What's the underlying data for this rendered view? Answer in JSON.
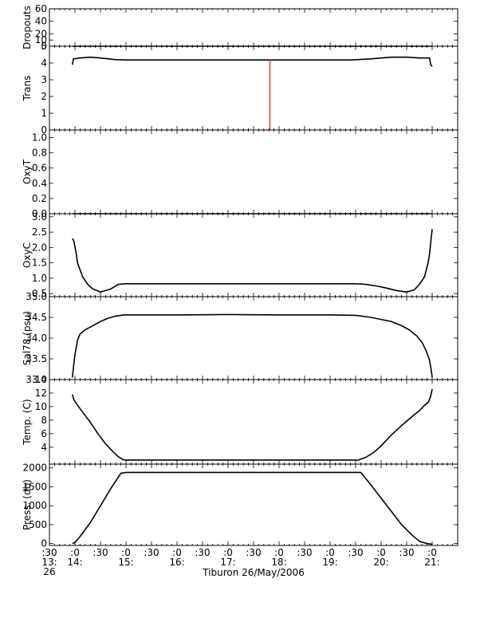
{
  "chart_data": {
    "type": "line",
    "title": "",
    "xlabel": "Tiburon 26/May/2006",
    "x_ticks": [
      {
        "t": 13.5,
        "line1": ":30",
        "line2": "13:",
        "line3": "26"
      },
      {
        "t": 14.0,
        "line1": ":0",
        "line2": "14:",
        "line3": ""
      },
      {
        "t": 14.5,
        "line1": ":30",
        "line2": "",
        "line3": ""
      },
      {
        "t": 15.0,
        "line1": ":0",
        "line2": "15:",
        "line3": ""
      },
      {
        "t": 15.5,
        "line1": ":30",
        "line2": "",
        "line3": ""
      },
      {
        "t": 16.0,
        "line1": ":0",
        "line2": "16:",
        "line3": ""
      },
      {
        "t": 16.5,
        "line1": ":30",
        "line2": "",
        "line3": ""
      },
      {
        "t": 17.0,
        "line1": ":0",
        "line2": "17:",
        "line3": ""
      },
      {
        "t": 17.5,
        "line1": ":30",
        "line2": "",
        "line3": ""
      },
      {
        "t": 18.0,
        "line1": ":0",
        "line2": "18:",
        "line3": ""
      },
      {
        "t": 18.5,
        "line1": ":30",
        "line2": "",
        "line3": ""
      },
      {
        "t": 19.0,
        "line1": ":0",
        "line2": "19:",
        "line3": ""
      },
      {
        "t": 19.5,
        "line1": ":30",
        "line2": "",
        "line3": ""
      },
      {
        "t": 20.0,
        "line1": ":0",
        "line2": "20:",
        "line3": ""
      },
      {
        "t": 20.5,
        "line1": ":30",
        "line2": "",
        "line3": ""
      },
      {
        "t": 21.0,
        "line1": ":0",
        "line2": "21:",
        "line3": ""
      }
    ],
    "xlim": [
      13.5,
      21.5
    ],
    "panels": [
      {
        "id": "dropouts",
        "ylabel": "Dropouts",
        "ylim": [
          0,
          60
        ],
        "ticks": [
          0,
          10,
          20,
          40,
          60
        ],
        "tick_labels": [
          "0",
          "10",
          "20",
          "40",
          "60"
        ],
        "series": [
          {
            "color": "#000000",
            "x": [
              13.95,
              21.0
            ],
            "y": [
              0,
              0
            ]
          }
        ]
      },
      {
        "id": "trans",
        "ylabel": "Trans",
        "ylim": [
          0,
          5
        ],
        "ticks": [
          0,
          1,
          2,
          3,
          4,
          5
        ],
        "tick_labels": [
          "0",
          "1",
          "2",
          "3",
          "4",
          "5"
        ],
        "series": [
          {
            "color": "#000000",
            "x": [
              13.95,
              13.97,
              14.1,
              14.3,
              14.5,
              14.8,
              15.0,
              16.0,
              17.0,
              18.0,
              19.0,
              19.4,
              19.8,
              20.2,
              20.5,
              20.75,
              20.95,
              20.97,
              21.0
            ],
            "y": [
              3.9,
              4.25,
              4.3,
              4.35,
              4.3,
              4.2,
              4.18,
              4.18,
              4.18,
              4.18,
              4.18,
              4.18,
              4.25,
              4.35,
              4.35,
              4.3,
              4.3,
              3.9,
              3.8
            ]
          },
          {
            "color": "#d40000",
            "x": [
              17.82,
              17.82
            ],
            "y": [
              4.2,
              0.0
            ]
          }
        ]
      },
      {
        "id": "oxyt",
        "ylabel": "OxyT",
        "ylim": [
          0,
          1.1
        ],
        "ticks": [
          0,
          0.2,
          0.4,
          0.6,
          0.8,
          1.0
        ],
        "tick_labels": [
          "0.0",
          "0.2",
          "0.4",
          "0.6",
          "0.8",
          "1.0"
        ],
        "series": [
          {
            "color": "#000000",
            "x": [
              13.95,
              21.0
            ],
            "y": [
              0,
              0
            ]
          }
        ]
      },
      {
        "id": "oxyc",
        "ylabel": "OxyC",
        "ylim": [
          0.4,
          3.1
        ],
        "ticks": [
          0.5,
          1.0,
          1.5,
          2.0,
          2.5,
          3.0
        ],
        "tick_labels": [
          "0.5",
          "1.0",
          "1.5",
          "2.0",
          "2.5",
          "3.0"
        ],
        "series": [
          {
            "color": "#000000",
            "x": [
              13.95,
              13.98,
              14.02,
              14.05,
              14.15,
              14.25,
              14.35,
              14.5,
              14.7,
              14.85,
              15.0,
              16.0,
              17.0,
              18.0,
              19.0,
              19.5,
              19.7,
              19.9,
              20.1,
              20.3,
              20.5,
              20.65,
              20.75,
              20.85,
              20.92,
              20.95,
              20.98,
              21.0
            ],
            "y": [
              2.3,
              2.2,
              1.85,
              1.5,
              1.05,
              0.8,
              0.65,
              0.55,
              0.65,
              0.8,
              0.82,
              0.82,
              0.82,
              0.82,
              0.82,
              0.82,
              0.8,
              0.75,
              0.68,
              0.6,
              0.55,
              0.62,
              0.8,
              1.05,
              1.5,
              1.8,
              2.3,
              2.6
            ]
          }
        ]
      },
      {
        "id": "salinity",
        "ylabel": "Sal78 (psu)",
        "ylim": [
          33.0,
          35.0
        ],
        "ticks": [
          33.0,
          33.5,
          34.0,
          34.5,
          35.0
        ],
        "tick_labels": [
          "33.0",
          "33.5",
          "34.0",
          "34.5",
          "35.0"
        ],
        "series": [
          {
            "color": "#000000",
            "x": [
              13.95,
              13.97,
              14.0,
              14.05,
              14.1,
              14.2,
              14.35,
              14.5,
              14.65,
              14.8,
              14.95,
              15.0,
              16.0,
              17.0,
              18.0,
              19.0,
              19.5,
              19.8,
              20.0,
              20.2,
              20.4,
              20.55,
              20.7,
              20.8,
              20.88,
              20.94,
              20.98,
              21.0
            ],
            "y": [
              33.05,
              33.3,
              33.6,
              33.95,
              34.1,
              34.2,
              34.3,
              34.4,
              34.48,
              34.53,
              34.56,
              34.56,
              34.56,
              34.57,
              34.56,
              34.56,
              34.55,
              34.5,
              34.45,
              34.4,
              34.3,
              34.2,
              34.05,
              33.9,
              33.7,
              33.5,
              33.25,
              33.05
            ]
          }
        ]
      },
      {
        "id": "temperature",
        "ylabel": "Temp. (C)",
        "ylim": [
          1.5,
          14
        ],
        "ticks": [
          4,
          6,
          8,
          10,
          12,
          14
        ],
        "tick_labels": [
          "4",
          "6",
          "8",
          "10",
          "12",
          "14"
        ],
        "series": [
          {
            "color": "#000000",
            "x": [
              13.95,
              13.98,
              14.05,
              14.15,
              14.3,
              14.45,
              14.6,
              14.75,
              14.85,
              14.95,
              15.0,
              16.0,
              17.0,
              18.0,
              19.0,
              19.55,
              19.7,
              19.85,
              20.0,
              20.2,
              20.4,
              20.6,
              20.75,
              20.85,
              20.92,
              20.97,
              21.0
            ],
            "y": [
              11.8,
              11.0,
              10.2,
              9.2,
              7.7,
              6.0,
              4.5,
              3.3,
              2.6,
              2.15,
              2.1,
              2.1,
              2.1,
              2.1,
              2.1,
              2.1,
              2.5,
              3.2,
              4.2,
              5.8,
              7.2,
              8.5,
              9.4,
              10.2,
              10.6,
              11.5,
              12.6
            ]
          }
        ]
      },
      {
        "id": "pressure",
        "ylabel": "Press. (db)",
        "ylim": [
          -50,
          2100
        ],
        "ticks": [
          0,
          500,
          1000,
          1500,
          2000
        ],
        "tick_labels": [
          "0",
          "500",
          "1000",
          "1500",
          "2000"
        ],
        "series": [
          {
            "color": "#000000",
            "x": [
              13.95,
              14.0,
              14.08,
              14.3,
              14.5,
              14.7,
              14.9,
              15.0,
              16.0,
              17.0,
              18.0,
              19.0,
              19.6,
              19.8,
              20.0,
              20.2,
              20.4,
              20.6,
              20.75,
              20.9,
              21.0
            ],
            "y": [
              0,
              30,
              150,
              550,
              1000,
              1450,
              1860,
              1880,
              1880,
              1880,
              1880,
              1880,
              1880,
              1550,
              1200,
              850,
              500,
              230,
              60,
              0,
              -20
            ]
          }
        ]
      }
    ]
  }
}
